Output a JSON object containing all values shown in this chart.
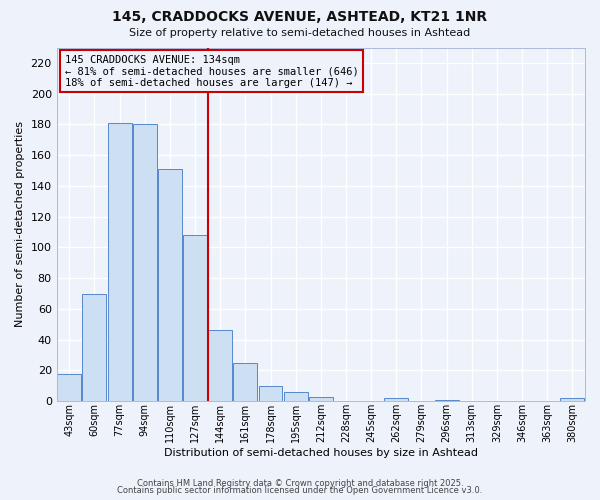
{
  "title": "145, CRADDOCKS AVENUE, ASHTEAD, KT21 1NR",
  "subtitle": "Size of property relative to semi-detached houses in Ashtead",
  "xlabel": "Distribution of semi-detached houses by size in Ashtead",
  "ylabel": "Number of semi-detached properties",
  "bar_labels": [
    "43sqm",
    "60sqm",
    "77sqm",
    "94sqm",
    "110sqm",
    "127sqm",
    "144sqm",
    "161sqm",
    "178sqm",
    "195sqm",
    "212sqm",
    "228sqm",
    "245sqm",
    "262sqm",
    "279sqm",
    "296sqm",
    "313sqm",
    "329sqm",
    "346sqm",
    "363sqm",
    "380sqm"
  ],
  "bar_heights": [
    18,
    70,
    181,
    180,
    151,
    108,
    46,
    25,
    10,
    6,
    3,
    0,
    0,
    2,
    0,
    1,
    0,
    0,
    0,
    0,
    2
  ],
  "bar_color": "#ccdff3",
  "bar_edge_color": "#5588cc",
  "vline_color": "#cc0000",
  "annotation_text": "145 CRADDOCKS AVENUE: 134sqm\n← 81% of semi-detached houses are smaller (646)\n18% of semi-detached houses are larger (147) →",
  "annotation_box_edge": "#cc0000",
  "ylim": [
    0,
    230
  ],
  "yticks": [
    0,
    20,
    40,
    60,
    80,
    100,
    120,
    140,
    160,
    180,
    200,
    220
  ],
  "footer1": "Contains HM Land Registry data © Crown copyright and database right 2025.",
  "footer2": "Contains public sector information licensed under the Open Government Licence v3.0.",
  "bg_color": "#eef2fb",
  "grid_color": "#ffffff",
  "title_fontsize": 10,
  "subtitle_fontsize": 8,
  "annot_fontsize": 7.5
}
